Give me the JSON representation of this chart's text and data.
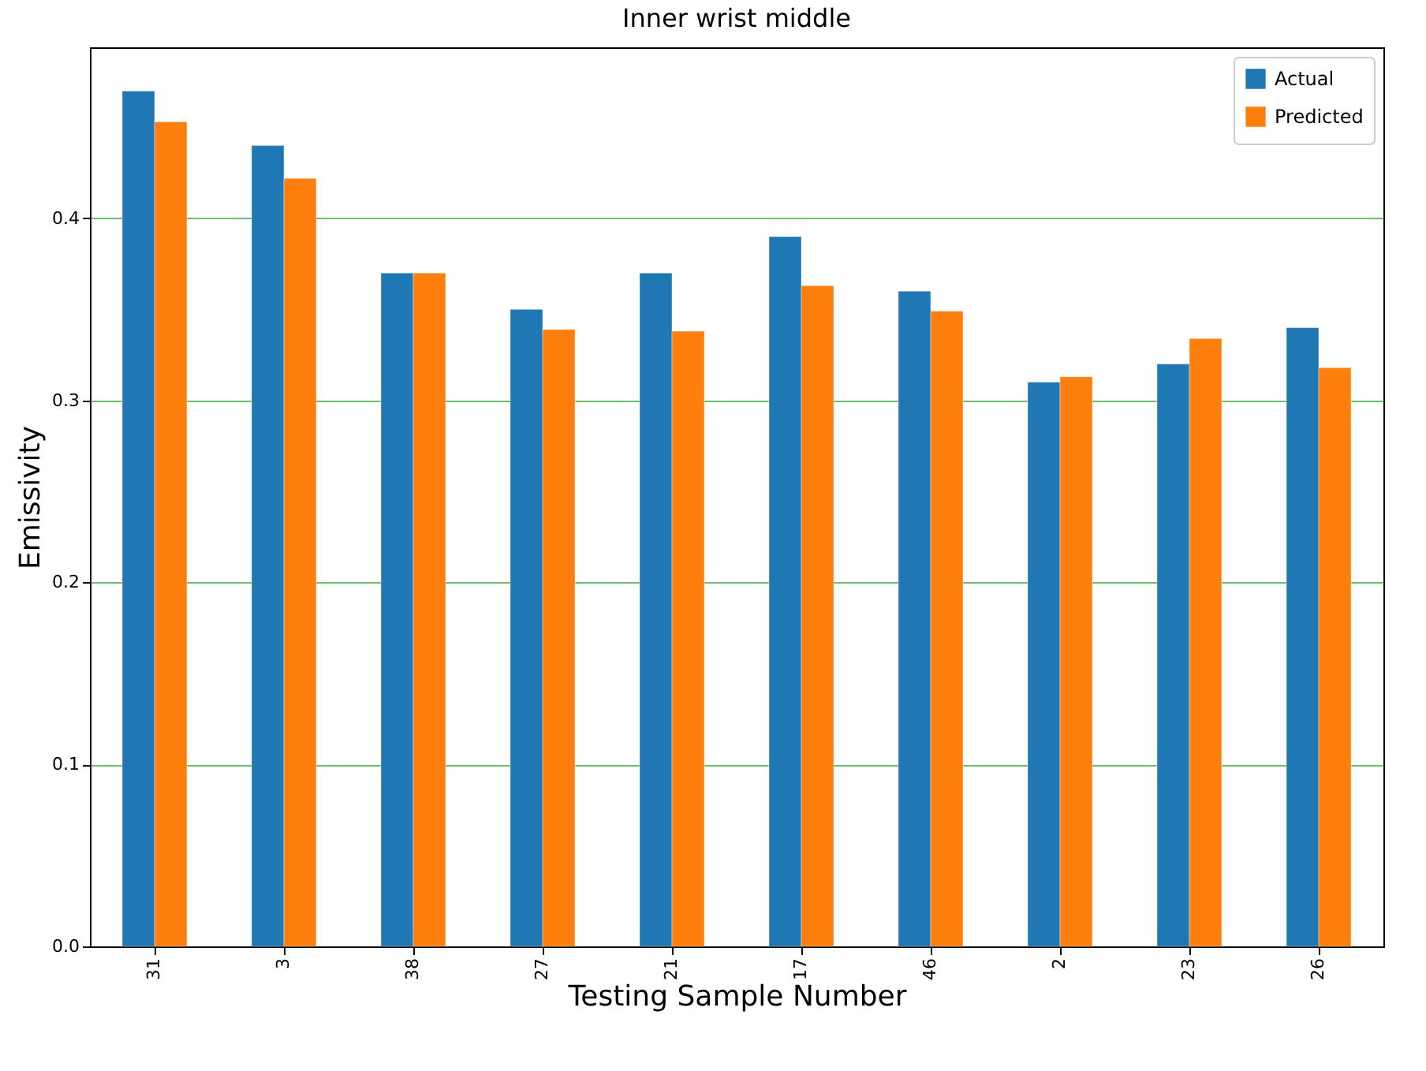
{
  "chart_data": {
    "type": "bar",
    "title": "Inner wrist middle",
    "xlabel": "Testing Sample Number",
    "ylabel": "Emissivity",
    "categories": [
      "31",
      "3",
      "38",
      "27",
      "21",
      "17",
      "46",
      "2",
      "23",
      "26"
    ],
    "series": [
      {
        "name": "Actual",
        "color": "#1f77b4",
        "values": [
          0.47,
          0.44,
          0.37,
          0.35,
          0.37,
          0.39,
          0.36,
          0.31,
          0.32,
          0.34
        ]
      },
      {
        "name": "Predicted",
        "color": "#ff7f0e",
        "values": [
          0.453,
          0.422,
          0.37,
          0.339,
          0.338,
          0.363,
          0.349,
          0.313,
          0.334,
          0.318
        ]
      }
    ],
    "ylim": [
      0,
      0.494
    ],
    "yticks": [
      {
        "value": 0,
        "label": "0.0"
      },
      0.1,
      0.2,
      0.3,
      0.4
    ],
    "grid": "y",
    "legend": "top right"
  }
}
